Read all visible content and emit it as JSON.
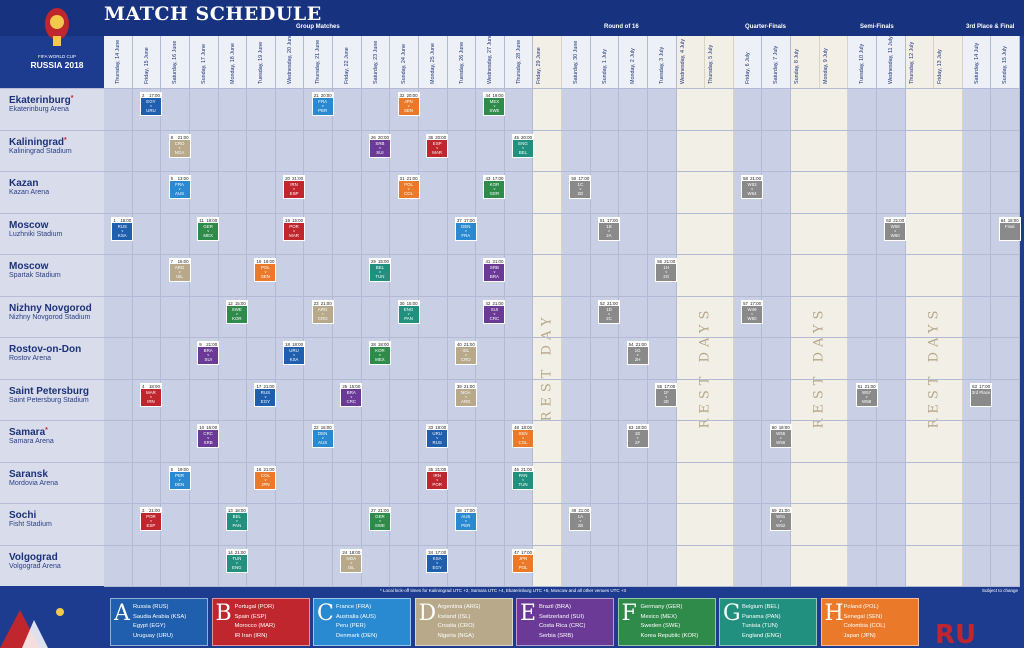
{
  "header": {
    "title": "MATCH SCHEDULE",
    "logo_line1": "FIFA WORLD CUP",
    "logo_line2": "RUSSIA 2018"
  },
  "stages": [
    "Group Matches",
    "Round of 16",
    "Quarter-Finals",
    "Semi-Finals",
    "3rd Place & Final"
  ],
  "dates": [
    "Thursday, 14 June",
    "Friday, 15 June",
    "Saturday, 16 June",
    "Sunday, 17 June",
    "Monday, 18 June",
    "Tuesday, 19 June",
    "Wednesday, 20 June",
    "Thursday, 21 June",
    "Friday, 22 June",
    "Saturday, 23 June",
    "Sunday, 24 June",
    "Monday, 25 June",
    "Tuesday, 26 June",
    "Wednesday, 27 June",
    "Thursday, 28 June",
    "Friday, 29 June",
    "Saturday, 30 June",
    "Sunday, 1 July",
    "Monday, 2 July",
    "Tuesday, 3 July",
    "Wednesday, 4 July",
    "Thursday, 5 July",
    "Friday, 6 July",
    "Saturday, 7 July",
    "Sunday, 8 July",
    "Monday, 9 July",
    "Tuesday, 10 July",
    "Wednesday, 11 July",
    "Thursday, 12 July",
    "Friday, 13 July",
    "Saturday, 14 July",
    "Sunday, 15 July"
  ],
  "rest_labels": [
    "REST DAY",
    "REST DAYS",
    "REST DAYS",
    "REST DAYS"
  ],
  "venues": [
    {
      "city": "Ekaterinburg",
      "star": "*",
      "stadium": "Ekaterinburg Arena"
    },
    {
      "city": "Kaliningrad",
      "star": "*",
      "stadium": "Kaliningrad Stadium"
    },
    {
      "city": "Kazan",
      "star": "",
      "stadium": "Kazan Arena"
    },
    {
      "city": "Moscow",
      "star": "",
      "stadium": "Luzhniki Stadium"
    },
    {
      "city": "Moscow",
      "star": "",
      "stadium": "Spartak Stadium"
    },
    {
      "city": "Nizhny Novgorod",
      "star": "",
      "stadium": "Nizhny Novgorod Stadium"
    },
    {
      "city": "Rostov-on-Don",
      "star": "",
      "stadium": "Rostov Arena"
    },
    {
      "city": "Saint Petersburg",
      "star": "",
      "stadium": "Saint Petersburg Stadium"
    },
    {
      "city": "Samara",
      "star": "*",
      "stadium": "Samara Arena"
    },
    {
      "city": "Saransk",
      "star": "",
      "stadium": "Mordovia Arena"
    },
    {
      "city": "Sochi",
      "star": "",
      "stadium": "Fisht Stadium"
    },
    {
      "city": "Volgograd",
      "star": "",
      "stadium": "Volgograd Arena"
    }
  ],
  "colors": {
    "A": "#1f5fae",
    "B": "#c0262d",
    "C": "#2a8ad1",
    "D": "#b8a98a",
    "E": "#6b3a96",
    "F": "#2e8b4a",
    "G": "#22907f",
    "H": "#ea7a2a",
    "K": "#8a8a8a"
  },
  "matches": [
    {
      "v": 0,
      "d": 1,
      "n": "2",
      "t": "17:00",
      "a": "EGY",
      "b": "URU",
      "g": "A"
    },
    {
      "v": 0,
      "d": 7,
      "n": "21",
      "t": "20:00",
      "a": "FRA",
      "b": "PER",
      "g": "C"
    },
    {
      "v": 0,
      "d": 10,
      "n": "32",
      "t": "20:00",
      "a": "JPN",
      "b": "SEN",
      "g": "H"
    },
    {
      "v": 0,
      "d": 13,
      "n": "44",
      "t": "19:00",
      "a": "MEX",
      "b": "SWE",
      "g": "F"
    },
    {
      "v": 1,
      "d": 2,
      "n": "8",
      "t": "21:00",
      "a": "CRO",
      "b": "NGA",
      "g": "D"
    },
    {
      "v": 1,
      "d": 9,
      "n": "26",
      "t": "20:00",
      "a": "SRB",
      "b": "SUI",
      "g": "E"
    },
    {
      "v": 1,
      "d": 11,
      "n": "36",
      "t": "20:00",
      "a": "ESP",
      "b": "MAR",
      "g": "B"
    },
    {
      "v": 1,
      "d": 14,
      "n": "45",
      "t": "20:00",
      "a": "ENG",
      "b": "BEL",
      "g": "G"
    },
    {
      "v": 2,
      "d": 2,
      "n": "5",
      "t": "13:00",
      "a": "FRA",
      "b": "AUS",
      "g": "C"
    },
    {
      "v": 2,
      "d": 6,
      "n": "20",
      "t": "21:00",
      "a": "IRN",
      "b": "ESP",
      "g": "B"
    },
    {
      "v": 2,
      "d": 10,
      "n": "31",
      "t": "21:00",
      "a": "POL",
      "b": "COL",
      "g": "H"
    },
    {
      "v": 2,
      "d": 13,
      "n": "43",
      "t": "17:00",
      "a": "KOR",
      "b": "GER",
      "g": "F"
    },
    {
      "v": 2,
      "d": 16,
      "n": "50",
      "t": "17:00",
      "a": "1C",
      "b": "2D",
      "g": "K"
    },
    {
      "v": 2,
      "d": 22,
      "n": "58",
      "t": "21:00",
      "a": "W53",
      "b": "W54",
      "g": "K"
    },
    {
      "v": 3,
      "d": 0,
      "n": "1",
      "t": "18:00",
      "a": "RUS",
      "b": "KSA",
      "g": "A"
    },
    {
      "v": 3,
      "d": 3,
      "n": "11",
      "t": "18:00",
      "a": "GER",
      "b": "MEX",
      "g": "F"
    },
    {
      "v": 3,
      "d": 6,
      "n": "19",
      "t": "15:00",
      "a": "POR",
      "b": "MAR",
      "g": "B"
    },
    {
      "v": 3,
      "d": 12,
      "n": "37",
      "t": "17:00",
      "a": "DEN",
      "b": "FRA",
      "g": "C"
    },
    {
      "v": 3,
      "d": 17,
      "n": "51",
      "t": "17:00",
      "a": "1B",
      "b": "2A",
      "g": "K"
    },
    {
      "v": 3,
      "d": 27,
      "n": "62",
      "t": "21:00",
      "a": "W59",
      "b": "W60",
      "g": "K"
    },
    {
      "v": 3,
      "d": 31,
      "n": "64",
      "t": "18:00",
      "a": "Final",
      "b": "",
      "g": "K"
    },
    {
      "v": 4,
      "d": 2,
      "n": "7",
      "t": "16:00",
      "a": "ARG",
      "b": "ISL",
      "g": "D"
    },
    {
      "v": 4,
      "d": 5,
      "n": "15",
      "t": "18:00",
      "a": "POL",
      "b": "SEN",
      "g": "H"
    },
    {
      "v": 4,
      "d": 9,
      "n": "29",
      "t": "15:00",
      "a": "BEL",
      "b": "TUN",
      "g": "G"
    },
    {
      "v": 4,
      "d": 13,
      "n": "41",
      "t": "21:00",
      "a": "SRB",
      "b": "BRA",
      "g": "E"
    },
    {
      "v": 4,
      "d": 19,
      "n": "56",
      "t": "21:00",
      "a": "1H",
      "b": "2G",
      "g": "K"
    },
    {
      "v": 5,
      "d": 4,
      "n": "12",
      "t": "15:00",
      "a": "SWE",
      "b": "KOR",
      "g": "F"
    },
    {
      "v": 5,
      "d": 7,
      "n": "23",
      "t": "21:00",
      "a": "ARG",
      "b": "CRO",
      "g": "D"
    },
    {
      "v": 5,
      "d": 10,
      "n": "30",
      "t": "15:00",
      "a": "ENG",
      "b": "PAN",
      "g": "G"
    },
    {
      "v": 5,
      "d": 13,
      "n": "42",
      "t": "21:00",
      "a": "SUI",
      "b": "CRC",
      "g": "E"
    },
    {
      "v": 5,
      "d": 17,
      "n": "52",
      "t": "21:00",
      "a": "1D",
      "b": "2C",
      "g": "K"
    },
    {
      "v": 5,
      "d": 22,
      "n": "57",
      "t": "17:00",
      "a": "W49",
      "b": "W50",
      "g": "K"
    },
    {
      "v": 6,
      "d": 3,
      "n": "9",
      "t": "21:00",
      "a": "BRA",
      "b": "SUI",
      "g": "E"
    },
    {
      "v": 6,
      "d": 6,
      "n": "18",
      "t": "18:00",
      "a": "URU",
      "b": "KSA",
      "g": "A"
    },
    {
      "v": 6,
      "d": 9,
      "n": "28",
      "t": "18:00",
      "a": "KOR",
      "b": "MEX",
      "g": "F"
    },
    {
      "v": 6,
      "d": 12,
      "n": "40",
      "t": "21:00",
      "a": "ISL",
      "b": "CRO",
      "g": "D"
    },
    {
      "v": 6,
      "d": 18,
      "n": "54",
      "t": "21:00",
      "a": "1G",
      "b": "2H",
      "g": "K"
    },
    {
      "v": 7,
      "d": 1,
      "n": "4",
      "t": "18:00",
      "a": "MAR",
      "b": "IRN",
      "g": "B"
    },
    {
      "v": 7,
      "d": 5,
      "n": "17",
      "t": "21:00",
      "a": "RUS",
      "b": "EGY",
      "g": "A"
    },
    {
      "v": 7,
      "d": 8,
      "n": "25",
      "t": "15:00",
      "a": "BRA",
      "b": "CRC",
      "g": "E"
    },
    {
      "v": 7,
      "d": 12,
      "n": "39",
      "t": "21:00",
      "a": "NGA",
      "b": "ARG",
      "g": "D"
    },
    {
      "v": 7,
      "d": 19,
      "n": "55",
      "t": "17:00",
      "a": "1F",
      "b": "2E",
      "g": "K"
    },
    {
      "v": 7,
      "d": 26,
      "n": "61",
      "t": "21:00",
      "a": "W57",
      "b": "W58",
      "g": "K"
    },
    {
      "v": 7,
      "d": 30,
      "n": "63",
      "t": "17:00",
      "a": "3rd Place",
      "b": "",
      "g": "K"
    },
    {
      "v": 8,
      "d": 3,
      "n": "10",
      "t": "16:00",
      "a": "CRC",
      "b": "SRB",
      "g": "E"
    },
    {
      "v": 8,
      "d": 7,
      "n": "22",
      "t": "16:00",
      "a": "DEN",
      "b": "AUS",
      "g": "C"
    },
    {
      "v": 8,
      "d": 11,
      "n": "33",
      "t": "18:00",
      "a": "URU",
      "b": "RUS",
      "g": "A"
    },
    {
      "v": 8,
      "d": 14,
      "n": "48",
      "t": "18:00",
      "a": "SEN",
      "b": "COL",
      "g": "H"
    },
    {
      "v": 8,
      "d": 18,
      "n": "53",
      "t": "18:00",
      "a": "1E",
      "b": "2F",
      "g": "K"
    },
    {
      "v": 8,
      "d": 23,
      "n": "60",
      "t": "18:00",
      "a": "W55",
      "b": "W56",
      "g": "K"
    },
    {
      "v": 9,
      "d": 2,
      "n": "6",
      "t": "19:00",
      "a": "PER",
      "b": "DEN",
      "g": "C"
    },
    {
      "v": 9,
      "d": 5,
      "n": "16",
      "t": "21:00",
      "a": "COL",
      "b": "JPN",
      "g": "H"
    },
    {
      "v": 9,
      "d": 11,
      "n": "35",
      "t": "21:00",
      "a": "IRN",
      "b": "POR",
      "g": "B"
    },
    {
      "v": 9,
      "d": 14,
      "n": "46",
      "t": "21:00",
      "a": "PAN",
      "b": "TUN",
      "g": "G"
    },
    {
      "v": 10,
      "d": 1,
      "n": "3",
      "t": "21:00",
      "a": "POR",
      "b": "ESP",
      "g": "B"
    },
    {
      "v": 10,
      "d": 4,
      "n": "13",
      "t": "18:00",
      "a": "BEL",
      "b": "PAN",
      "g": "G"
    },
    {
      "v": 10,
      "d": 9,
      "n": "27",
      "t": "21:00",
      "a": "GER",
      "b": "SWE",
      "g": "F"
    },
    {
      "v": 10,
      "d": 12,
      "n": "38",
      "t": "17:00",
      "a": "AUS",
      "b": "PER",
      "g": "C"
    },
    {
      "v": 10,
      "d": 16,
      "n": "49",
      "t": "21:00",
      "a": "1A",
      "b": "2B",
      "g": "K"
    },
    {
      "v": 10,
      "d": 23,
      "n": "59",
      "t": "21:00",
      "a": "W51",
      "b": "W52",
      "g": "K"
    },
    {
      "v": 11,
      "d": 4,
      "n": "14",
      "t": "21:00",
      "a": "TUN",
      "b": "ENG",
      "g": "G"
    },
    {
      "v": 11,
      "d": 8,
      "n": "24",
      "t": "18:00",
      "a": "NGA",
      "b": "ISL",
      "g": "D"
    },
    {
      "v": 11,
      "d": 11,
      "n": "34",
      "t": "17:00",
      "a": "KSA",
      "b": "EGY",
      "g": "A"
    },
    {
      "v": 11,
      "d": 14,
      "n": "47",
      "t": "17:00",
      "a": "JPN",
      "b": "POL",
      "g": "H"
    }
  ],
  "note": "* Local kick-off times for Kaliningrad UTC +2, Samara UTC +4, Ekaterinburg UTC +5, Moscow and all other venues UTC +3",
  "note_right": "Subject to change",
  "groups": [
    {
      "letter": "A",
      "teams": [
        "Russia (RUS)",
        "Saudia Arabia (KSA)",
        "Egypt (EGY)",
        "Uruguay (URU)"
      ]
    },
    {
      "letter": "B",
      "teams": [
        "Portugal (POR)",
        "Spain (ESP)",
        "Morocco (MAR)",
        "IR Iran (IRN)"
      ]
    },
    {
      "letter": "C",
      "teams": [
        "France (FRA)",
        "Australia (AUS)",
        "Peru (PER)",
        "Denmark (DEN)"
      ]
    },
    {
      "letter": "D",
      "teams": [
        "Argentina (ARG)",
        "Iceland (ISL)",
        "Croatia (CRO)",
        "Nigeria (NGA)"
      ]
    },
    {
      "letter": "E",
      "teams": [
        "Brazil (BRA)",
        "Switzerland (SUI)",
        "Costa Rica (CRC)",
        "Serbia (SRB)"
      ]
    },
    {
      "letter": "F",
      "teams": [
        "Germany (GER)",
        "Mexico (MEX)",
        "Sweden (SWE)",
        "Korea Republic (KOR)"
      ]
    },
    {
      "letter": "G",
      "teams": [
        "Belgium (BEL)",
        "Panama (PAN)",
        "Tunisia (TUN)",
        "England (ENG)"
      ]
    },
    {
      "letter": "H",
      "teams": [
        "Poland (POL)",
        "Senegal (SEN)",
        "Colombia (COL)",
        "Japan (JPN)"
      ]
    }
  ],
  "footer_logo": "RU"
}
